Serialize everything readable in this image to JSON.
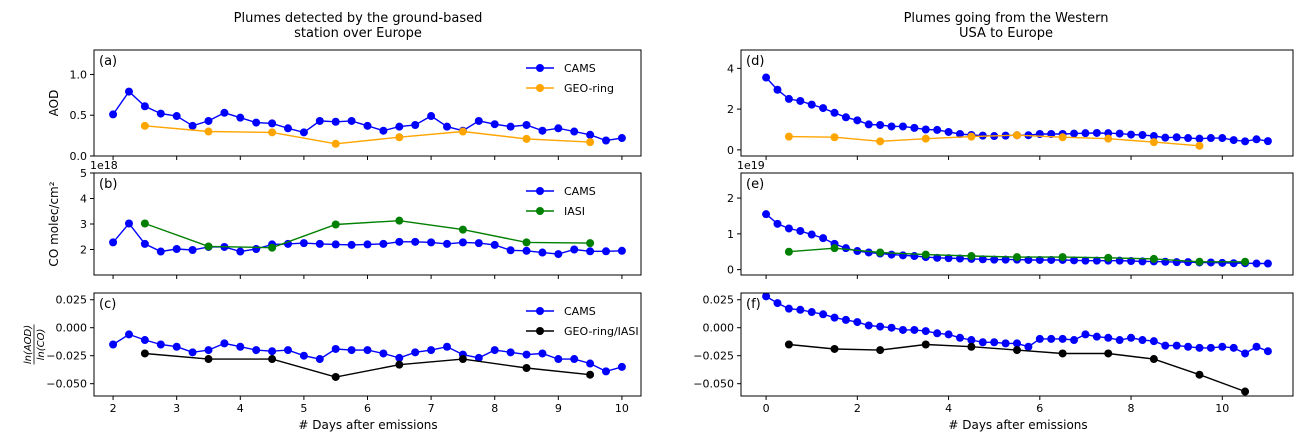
{
  "columns": [
    {
      "title_lines": [
        "Plumes detected  by the ground-based",
        "station over Europe"
      ],
      "xlabel": "# Days after emissions"
    },
    {
      "title_lines": [
        "Plumes going from the Western",
        "USA to Europe"
      ],
      "xlabel": "# Days after emissions"
    }
  ],
  "chart_data": [
    {
      "id": "a",
      "panel_label": "(a)",
      "type": "line",
      "ylabel": "AOD",
      "exponent": "",
      "xlim": [
        1.7,
        10.3
      ],
      "ylim": [
        0,
        1.3
      ],
      "xticks": [
        2,
        3,
        4,
        5,
        6,
        7,
        8,
        9,
        10
      ],
      "xtick_labels": [],
      "yticks": [
        0,
        0.5,
        1.0
      ],
      "ytick_labels": [
        "0.0",
        "0.5",
        "1.0"
      ],
      "legend_position": "top-right",
      "series": [
        {
          "name": "CAMS",
          "color": "#0000ff",
          "x": [
            2.0,
            2.25,
            2.5,
            2.75,
            3.0,
            3.25,
            3.5,
            3.75,
            4.0,
            4.25,
            4.5,
            4.75,
            5.0,
            5.25,
            5.5,
            5.75,
            6.0,
            6.25,
            6.5,
            6.75,
            7.0,
            7.25,
            7.5,
            7.75,
            8.0,
            8.25,
            8.5,
            8.75,
            9.0,
            9.25,
            9.5,
            9.75,
            10.0
          ],
          "y": [
            0.51,
            0.79,
            0.61,
            0.52,
            0.49,
            0.37,
            0.43,
            0.53,
            0.47,
            0.41,
            0.4,
            0.34,
            0.29,
            0.43,
            0.42,
            0.43,
            0.37,
            0.31,
            0.36,
            0.38,
            0.49,
            0.36,
            0.31,
            0.43,
            0.39,
            0.36,
            0.38,
            0.31,
            0.34,
            0.3,
            0.26,
            0.19,
            0.22
          ]
        },
        {
          "name": "GEO-ring",
          "color": "#ffa500",
          "x": [
            2.5,
            3.5,
            4.5,
            5.5,
            6.5,
            7.5,
            8.5,
            9.5
          ],
          "y": [
            0.37,
            0.3,
            0.29,
            0.15,
            0.23,
            0.3,
            0.21,
            0.17
          ]
        }
      ]
    },
    {
      "id": "b",
      "panel_label": "(b)",
      "type": "line",
      "ylabel": "CO molec/cm²",
      "exponent": "1e18",
      "xlim": [
        1.7,
        10.3
      ],
      "ylim": [
        1.0,
        5.0
      ],
      "xticks": [
        2,
        3,
        4,
        5,
        6,
        7,
        8,
        9,
        10
      ],
      "xtick_labels": [],
      "yticks": [
        2,
        3,
        4,
        5
      ],
      "ytick_labels": [
        "2",
        "3",
        "4",
        "5"
      ],
      "legend_position": "top-right",
      "series": [
        {
          "name": "CAMS",
          "color": "#0000ff",
          "x": [
            2.0,
            2.25,
            2.5,
            2.75,
            3.0,
            3.25,
            3.5,
            3.75,
            4.0,
            4.25,
            4.5,
            4.75,
            5.0,
            5.25,
            5.5,
            5.75,
            6.0,
            6.25,
            6.5,
            6.75,
            7.0,
            7.25,
            7.5,
            7.75,
            8.0,
            8.25,
            8.5,
            8.75,
            9.0,
            9.25,
            9.5,
            9.75,
            10.0
          ],
          "y": [
            2.28,
            3.02,
            2.22,
            1.92,
            2.02,
            1.98,
            2.1,
            2.1,
            1.92,
            2.02,
            2.2,
            2.22,
            2.25,
            2.22,
            2.2,
            2.18,
            2.2,
            2.22,
            2.3,
            2.3,
            2.28,
            2.22,
            2.28,
            2.25,
            2.18,
            1.97,
            1.95,
            1.88,
            1.82,
            2.0,
            1.93,
            1.93,
            1.95
          ]
        },
        {
          "name": "IASI",
          "color": "#008000",
          "x": [
            2.5,
            3.5,
            4.5,
            5.5,
            6.5,
            7.5,
            8.5,
            9.5
          ],
          "y": [
            3.02,
            2.12,
            2.07,
            2.98,
            3.13,
            2.78,
            2.28,
            2.25
          ]
        }
      ]
    },
    {
      "id": "c",
      "panel_label": "(c)",
      "type": "line",
      "ylabel": "ln(AOD) / ln(CO)",
      "exponent": "",
      "xlim": [
        1.7,
        10.3
      ],
      "ylim": [
        -0.061,
        0.031
      ],
      "xticks": [
        2,
        3,
        4,
        5,
        6,
        7,
        8,
        9,
        10
      ],
      "xtick_labels": [
        "2",
        "3",
        "4",
        "5",
        "6",
        "7",
        "8",
        "9",
        "10"
      ],
      "yticks": [
        0.025,
        0,
        -0.025,
        -0.05
      ],
      "ytick_labels": [
        "0.025",
        "0.000",
        "−0.025",
        "−0.050"
      ],
      "legend_position": "top-right",
      "series": [
        {
          "name": "CAMS",
          "color": "#0000ff",
          "x": [
            2.0,
            2.25,
            2.5,
            2.75,
            3.0,
            3.25,
            3.5,
            3.75,
            4.0,
            4.25,
            4.5,
            4.75,
            5.0,
            5.25,
            5.5,
            5.75,
            6.0,
            6.25,
            6.5,
            6.75,
            7.0,
            7.25,
            7.5,
            7.75,
            8.0,
            8.25,
            8.5,
            8.75,
            9.0,
            9.25,
            9.5,
            9.75,
            10.0
          ],
          "y": [
            -0.015,
            -0.006,
            -0.011,
            -0.015,
            -0.017,
            -0.022,
            -0.02,
            -0.014,
            -0.017,
            -0.02,
            -0.021,
            -0.02,
            -0.025,
            -0.028,
            -0.019,
            -0.02,
            -0.02,
            -0.023,
            -0.027,
            -0.022,
            -0.02,
            -0.017,
            -0.024,
            -0.027,
            -0.02,
            -0.022,
            -0.024,
            -0.023,
            -0.028,
            -0.028,
            -0.032,
            -0.039,
            -0.035
          ]
        },
        {
          "name": "GEO-ring/IASI",
          "color": "#000000",
          "x": [
            2.5,
            3.5,
            4.5,
            5.5,
            6.5,
            7.5,
            8.5,
            9.5
          ],
          "y": [
            -0.023,
            -0.028,
            -0.028,
            -0.044,
            -0.033,
            -0.028,
            -0.036,
            -0.042
          ]
        }
      ]
    },
    {
      "id": "d",
      "panel_label": "(d)",
      "type": "line",
      "ylabel": "",
      "exponent": "",
      "xlim": [
        -0.55,
        11.55
      ],
      "ylim": [
        -0.3,
        4.9
      ],
      "xticks": [
        0,
        2,
        4,
        6,
        8,
        10
      ],
      "xtick_labels": [],
      "yticks": [
        0,
        2,
        4
      ],
      "ytick_labels": [
        "0",
        "2",
        "4"
      ],
      "legend_position": "none",
      "series": [
        {
          "name": "CAMS",
          "color": "#0000ff",
          "x": [
            0.0,
            0.25,
            0.5,
            0.75,
            1.0,
            1.25,
            1.5,
            1.75,
            2.0,
            2.25,
            2.5,
            2.75,
            3.0,
            3.25,
            3.5,
            3.75,
            4.0,
            4.25,
            4.5,
            4.75,
            5.0,
            5.25,
            5.5,
            5.75,
            6.0,
            6.25,
            6.5,
            6.75,
            7.0,
            7.25,
            7.5,
            7.75,
            8.0,
            8.25,
            8.5,
            8.75,
            9.0,
            9.25,
            9.5,
            9.75,
            10.0,
            10.25,
            10.5,
            10.75,
            11.0
          ],
          "y": [
            3.55,
            2.95,
            2.5,
            2.4,
            2.22,
            2.05,
            1.82,
            1.6,
            1.45,
            1.25,
            1.22,
            1.15,
            1.15,
            1.08,
            1.0,
            0.98,
            0.88,
            0.78,
            0.73,
            0.7,
            0.68,
            0.7,
            0.72,
            0.72,
            0.78,
            0.78,
            0.78,
            0.8,
            0.82,
            0.83,
            0.82,
            0.8,
            0.75,
            0.73,
            0.68,
            0.6,
            0.62,
            0.58,
            0.55,
            0.58,
            0.58,
            0.48,
            0.42,
            0.52,
            0.43
          ]
        },
        {
          "name": "GEO-ring",
          "color": "#ffa500",
          "x": [
            0.5,
            1.5,
            2.5,
            3.5,
            4.5,
            5.5,
            6.5,
            7.5,
            8.5,
            9.5
          ],
          "y": [
            0.65,
            0.62,
            0.42,
            0.55,
            0.65,
            0.72,
            0.62,
            0.55,
            0.38,
            0.2
          ]
        }
      ]
    },
    {
      "id": "e",
      "panel_label": "(e)",
      "type": "line",
      "ylabel": "",
      "exponent": "1e19",
      "xlim": [
        -0.55,
        11.55
      ],
      "ylim": [
        -0.15,
        2.7
      ],
      "xticks": [
        0,
        2,
        4,
        6,
        8,
        10
      ],
      "xtick_labels": [],
      "yticks": [
        0,
        1,
        2
      ],
      "ytick_labels": [
        "0",
        "1",
        "2"
      ],
      "legend_position": "none",
      "series": [
        {
          "name": "CAMS",
          "color": "#0000ff",
          "x": [
            0.0,
            0.25,
            0.5,
            0.75,
            1.0,
            1.25,
            1.5,
            1.75,
            2.0,
            2.25,
            2.5,
            2.75,
            3.0,
            3.25,
            3.5,
            3.75,
            4.0,
            4.25,
            4.5,
            4.75,
            5.0,
            5.25,
            5.5,
            5.75,
            6.0,
            6.25,
            6.5,
            6.75,
            7.0,
            7.25,
            7.5,
            7.75,
            8.0,
            8.25,
            8.5,
            8.75,
            9.0,
            9.25,
            9.5,
            9.75,
            10.0,
            10.25,
            10.5,
            10.75,
            11.0
          ],
          "y": [
            1.55,
            1.28,
            1.15,
            1.08,
            0.98,
            0.88,
            0.72,
            0.6,
            0.52,
            0.48,
            0.45,
            0.42,
            0.4,
            0.38,
            0.35,
            0.33,
            0.32,
            0.31,
            0.3,
            0.29,
            0.28,
            0.28,
            0.28,
            0.27,
            0.27,
            0.27,
            0.27,
            0.26,
            0.25,
            0.25,
            0.25,
            0.25,
            0.24,
            0.23,
            0.23,
            0.22,
            0.21,
            0.21,
            0.2,
            0.2,
            0.19,
            0.18,
            0.18,
            0.17,
            0.17
          ]
        },
        {
          "name": "IASI",
          "color": "#008000",
          "x": [
            0.5,
            1.5,
            2.5,
            3.5,
            4.5,
            5.5,
            6.5,
            7.5,
            8.5,
            9.5,
            10.5
          ],
          "y": [
            0.5,
            0.6,
            0.48,
            0.42,
            0.38,
            0.35,
            0.35,
            0.33,
            0.3,
            0.22,
            0.22
          ]
        }
      ]
    },
    {
      "id": "f",
      "panel_label": "(f)",
      "type": "line",
      "ylabel": "",
      "exponent": "",
      "xlim": [
        -0.55,
        11.55
      ],
      "ylim": [
        -0.061,
        0.031
      ],
      "xticks": [
        0,
        2,
        4,
        6,
        8,
        10
      ],
      "xtick_labels": [
        "0",
        "2",
        "4",
        "6",
        "8",
        "10"
      ],
      "yticks": [
        0.025,
        0,
        -0.025,
        -0.05
      ],
      "ytick_labels": [
        "0.025",
        "0.000",
        "−0.025",
        "−0.050"
      ],
      "legend_position": "none",
      "series": [
        {
          "name": "CAMS",
          "color": "#0000ff",
          "x": [
            0.0,
            0.25,
            0.5,
            0.75,
            1.0,
            1.25,
            1.5,
            1.75,
            2.0,
            2.25,
            2.5,
            2.75,
            3.0,
            3.25,
            3.5,
            3.75,
            4.0,
            4.25,
            4.5,
            4.75,
            5.0,
            5.25,
            5.5,
            5.75,
            6.0,
            6.25,
            6.5,
            6.75,
            7.0,
            7.25,
            7.5,
            7.75,
            8.0,
            8.25,
            8.5,
            8.75,
            9.0,
            9.25,
            9.5,
            9.75,
            10.0,
            10.25,
            10.5,
            10.75,
            11.0
          ],
          "y": [
            0.028,
            0.022,
            0.017,
            0.016,
            0.014,
            0.012,
            0.009,
            0.007,
            0.005,
            0.002,
            0.001,
            0.0,
            -0.002,
            -0.002,
            -0.003,
            -0.005,
            -0.006,
            -0.009,
            -0.011,
            -0.013,
            -0.013,
            -0.014,
            -0.014,
            -0.017,
            -0.01,
            -0.01,
            -0.01,
            -0.011,
            -0.006,
            -0.008,
            -0.009,
            -0.011,
            -0.009,
            -0.011,
            -0.012,
            -0.016,
            -0.016,
            -0.017,
            -0.018,
            -0.018,
            -0.017,
            -0.018,
            -0.023,
            -0.017,
            -0.021
          ]
        },
        {
          "name": "GEO-ring/IASI",
          "color": "#000000",
          "x": [
            0.5,
            1.5,
            2.5,
            3.5,
            4.5,
            5.5,
            6.5,
            7.5,
            8.5,
            9.5,
            10.5
          ],
          "y": [
            -0.015,
            -0.019,
            -0.02,
            -0.015,
            -0.017,
            -0.02,
            -0.023,
            -0.023,
            -0.028,
            -0.042,
            -0.057
          ]
        }
      ]
    }
  ]
}
